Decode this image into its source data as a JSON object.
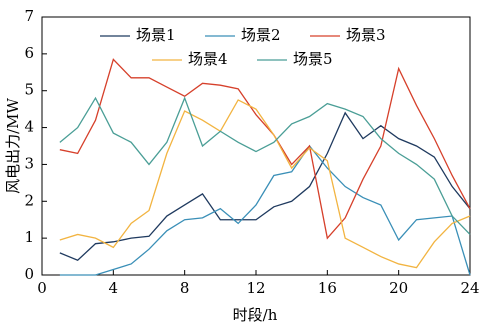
{
  "chart_data": {
    "type": "line",
    "xlabel": "时段/h",
    "ylabel": "风电出力/MW",
    "x": [
      1,
      2,
      3,
      4,
      5,
      6,
      7,
      8,
      9,
      10,
      11,
      12,
      13,
      14,
      15,
      16,
      17,
      18,
      19,
      20,
      21,
      22,
      23,
      24
    ],
    "series": [
      {
        "name": "场景1",
        "color": "#1f3a5f",
        "values": [
          0.6,
          0.4,
          0.85,
          0.9,
          1.0,
          1.05,
          1.6,
          1.9,
          2.2,
          1.5,
          1.5,
          1.5,
          1.85,
          2.0,
          2.4,
          3.3,
          4.4,
          3.7,
          4.05,
          3.7,
          3.5,
          3.2,
          2.4,
          1.8
        ]
      },
      {
        "name": "场景2",
        "color": "#3a8fb7",
        "values": [
          0,
          0,
          0,
          0.15,
          0.3,
          0.7,
          1.2,
          1.5,
          1.55,
          1.8,
          1.4,
          1.9,
          2.7,
          2.8,
          3.5,
          2.9,
          2.4,
          2.1,
          1.9,
          0.95,
          1.5,
          1.55,
          1.6,
          0
        ]
      },
      {
        "name": "场景3",
        "color": "#d6402b",
        "values": [
          3.4,
          3.3,
          4.2,
          5.85,
          5.35,
          5.35,
          5.1,
          4.85,
          5.2,
          5.15,
          5.05,
          4.35,
          3.8,
          3.0,
          3.5,
          1.0,
          1.55,
          2.6,
          3.5,
          5.6,
          4.6,
          3.7,
          2.7,
          1.8
        ]
      },
      {
        "name": "场景4",
        "color": "#f2b441",
        "values": [
          0.95,
          1.1,
          1.0,
          0.75,
          1.4,
          1.75,
          3.3,
          4.45,
          4.2,
          3.9,
          4.75,
          4.5,
          3.8,
          2.9,
          3.45,
          3.1,
          1.0,
          0.75,
          0.5,
          0.3,
          0.2,
          0.9,
          1.4,
          1.6
        ]
      },
      {
        "name": "场景5",
        "color": "#4a9e96",
        "values": [
          3.6,
          4.0,
          4.8,
          3.85,
          3.6,
          3.0,
          3.6,
          4.8,
          3.5,
          3.9,
          3.6,
          3.35,
          3.6,
          4.1,
          4.3,
          4.65,
          4.5,
          4.3,
          3.7,
          3.3,
          3.0,
          2.6,
          1.6,
          1.1
        ]
      }
    ],
    "xlim": [
      0,
      24
    ],
    "xticks": [
      0,
      4,
      8,
      12,
      16,
      20,
      24
    ],
    "ylim": [
      0,
      7
    ],
    "yticks": [
      0,
      1,
      2,
      3,
      4,
      5,
      6,
      7
    ]
  }
}
